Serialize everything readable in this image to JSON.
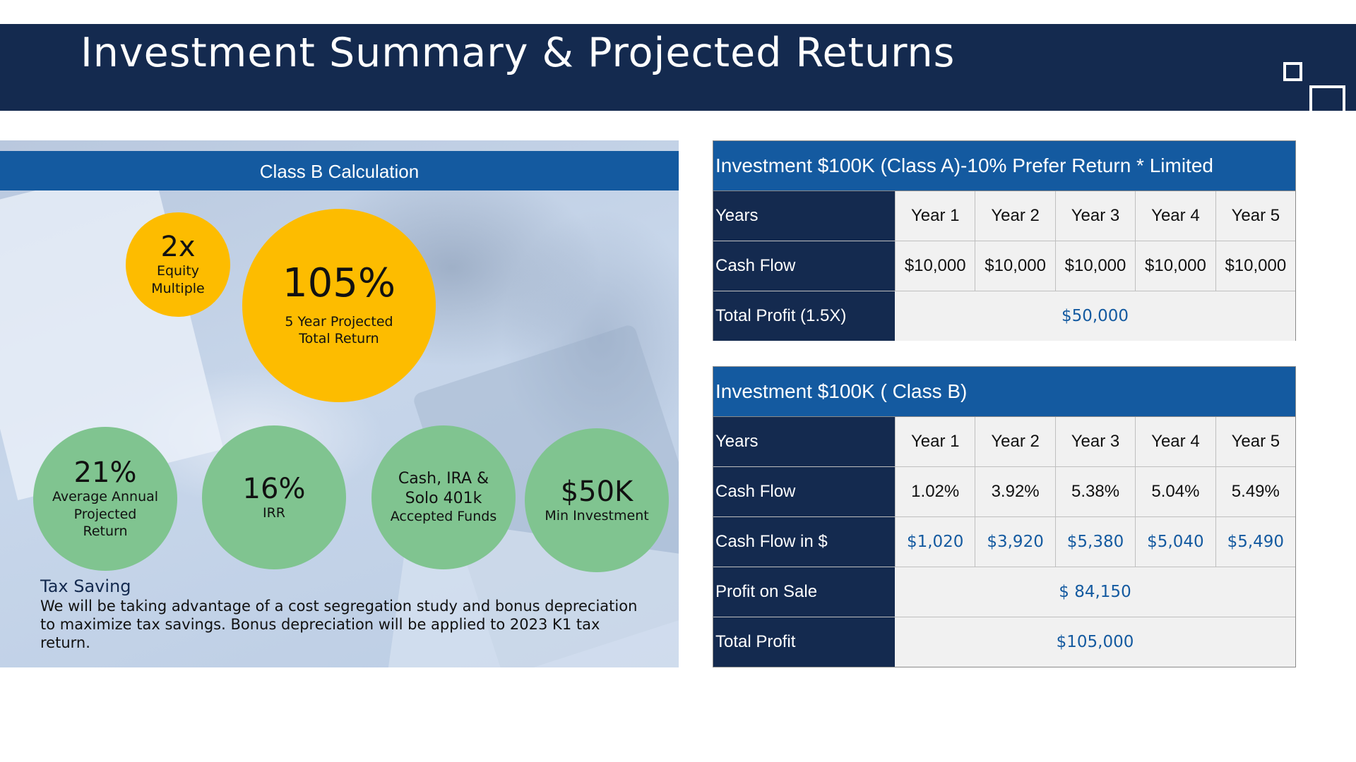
{
  "header": {
    "title": "Investment Summary & Projected Returns"
  },
  "left_panel": {
    "banner": "Class B Calculation",
    "stats": {
      "equity_multiple": {
        "value": "2x",
        "line1": "Equity",
        "line2": "Multiple"
      },
      "total_return": {
        "value": "105%",
        "line1": "5 Year Projected",
        "line2": "Total Return"
      },
      "avg_return": {
        "value": "21%",
        "line1": "Average Annual",
        "line2": "Projected",
        "line3": "Return"
      },
      "irr": {
        "value": "16%",
        "line1": "IRR"
      },
      "funds": {
        "line1": "Cash, IRA &",
        "line2": "Solo 401k",
        "line3": "Accepted Funds"
      },
      "min_investment": {
        "value": "$50K",
        "line1": "Min Investment"
      }
    },
    "tax": {
      "title": "Tax Saving",
      "text": "We will be taking advantage of a cost segregation study and bonus depreciation to maximize tax savings. Bonus depreciation will be applied to 2023 K1 tax return."
    }
  },
  "table_a": {
    "title": "Investment $100K (Class A)-10% Prefer Return * Limited",
    "years_label": "Years",
    "years": [
      "Year 1",
      "Year 2",
      "Year 3",
      "Year 4",
      "Year 5"
    ],
    "cash_flow_label": "Cash Flow",
    "cash_flow": [
      "$10,000",
      "$10,000",
      "$10,000",
      "$10,000",
      "$10,000"
    ],
    "total_profit_label": "Total Profit (1.5X)",
    "total_profit": "$50,000"
  },
  "table_b": {
    "title": "Investment $100K ( Class B)",
    "years_label": "Years",
    "years": [
      "Year 1",
      "Year 2",
      "Year 3",
      "Year 4",
      "Year 5"
    ],
    "cash_flow_label": "Cash Flow",
    "cash_flow": [
      "1.02%",
      "3.92%",
      "5.38%",
      "5.04%",
      "5.49%"
    ],
    "cash_flow_dollars_label": "Cash Flow in $",
    "cash_flow_dollars": [
      "$1,020",
      "$3,920",
      "$5,380",
      "$5,040",
      "$5,490"
    ],
    "profit_on_sale_label": "Profit on Sale",
    "profit_on_sale": "$ 84,150",
    "total_profit_label": "Total Profit",
    "total_profit": "$105,000"
  },
  "colors": {
    "navy": "#142a4f",
    "blue": "#145aa0",
    "yellow": "#fdbc00",
    "green": "#80c490"
  }
}
